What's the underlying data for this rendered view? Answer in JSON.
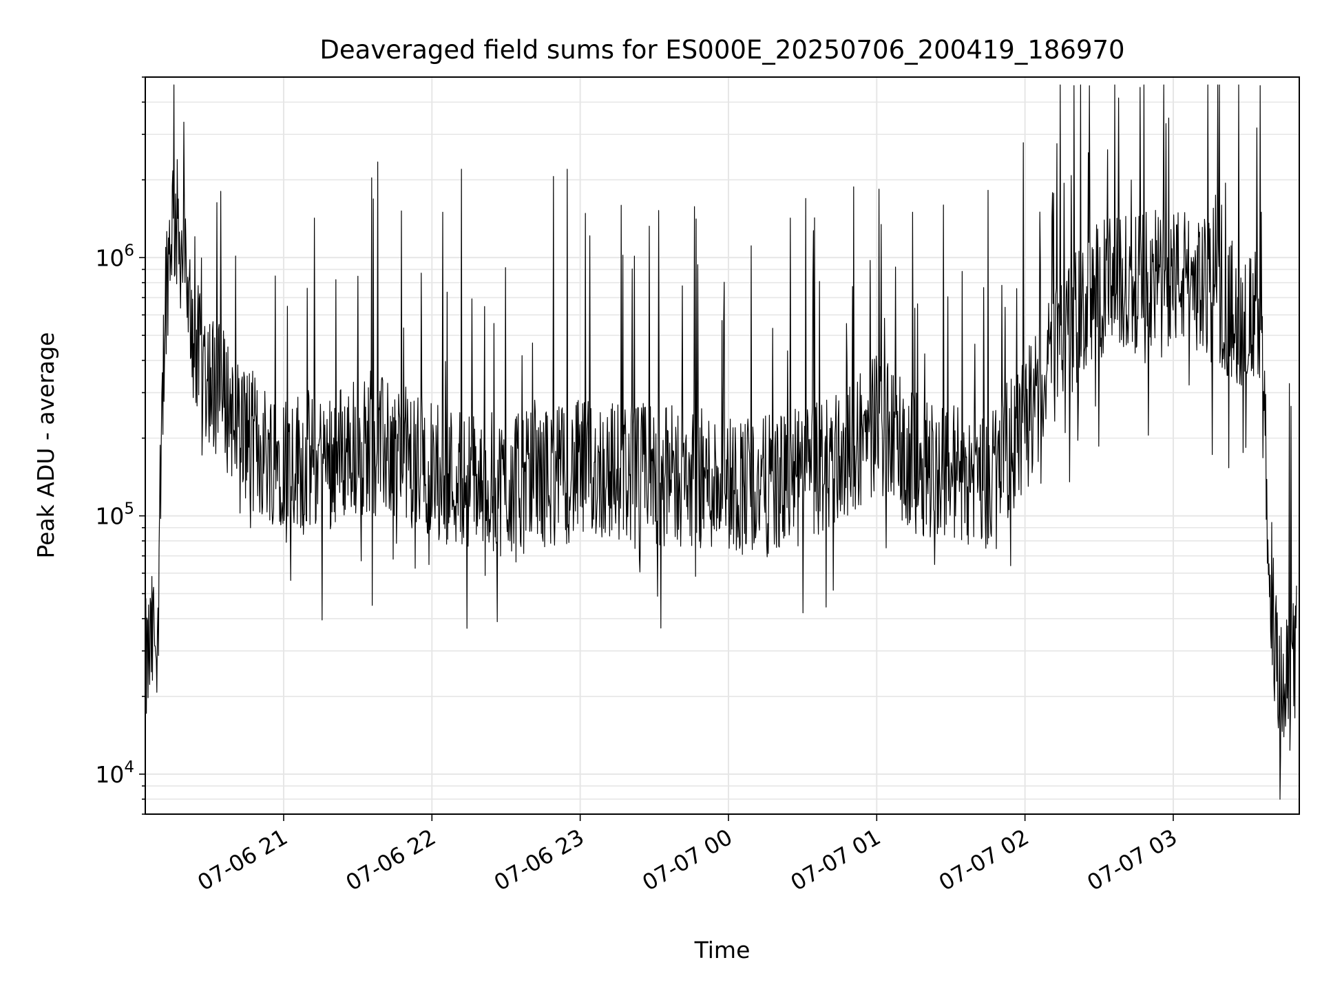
{
  "chart_data": {
    "type": "line",
    "title": "Deaveraged field sums for ES000E_20250706_200419_186970",
    "xlabel": "Time",
    "ylabel": "Peak ADU - average",
    "yscale": "log",
    "ylim": [
      7000,
      5000000
    ],
    "xlim": [
      "2025-07-06 20:04",
      "2025-07-07 03:51"
    ],
    "grid": true,
    "x_ticks": [
      {
        "at": "2025-07-06 21:00",
        "label": "07-06 21"
      },
      {
        "at": "2025-07-06 22:00",
        "label": "07-06 22"
      },
      {
        "at": "2025-07-06 23:00",
        "label": "07-06 23"
      },
      {
        "at": "2025-07-07 00:00",
        "label": "07-07 00"
      },
      {
        "at": "2025-07-07 01:00",
        "label": "07-07 01"
      },
      {
        "at": "2025-07-07 02:00",
        "label": "07-07 02"
      },
      {
        "at": "2025-07-07 03:00",
        "label": "07-07 03"
      }
    ],
    "y_ticks": [
      {
        "value": 10000,
        "base": "10",
        "exp": "4"
      },
      {
        "value": 100000,
        "base": "10",
        "exp": "5"
      },
      {
        "value": 1000000,
        "base": "10",
        "exp": "6"
      }
    ],
    "series": [
      {
        "color": "#000000",
        "x": [
          "2025-07-06 20:04",
          "2025-07-06 20:06",
          "2025-07-06 20:09",
          "2025-07-06 20:12",
          "2025-07-06 20:15",
          "2025-07-06 20:18",
          "2025-07-06 20:20",
          "2025-07-06 20:23",
          "2025-07-06 20:26",
          "2025-07-06 20:30",
          "2025-07-06 20:40",
          "2025-07-06 20:50",
          "2025-07-06 21:00",
          "2025-07-06 21:15",
          "2025-07-06 21:30",
          "2025-07-06 21:45",
          "2025-07-06 22:00",
          "2025-07-06 22:15",
          "2025-07-06 22:30",
          "2025-07-06 22:45",
          "2025-07-06 23:00",
          "2025-07-06 23:15",
          "2025-07-06 23:30",
          "2025-07-06 23:45",
          "2025-07-07 00:00",
          "2025-07-07 00:15",
          "2025-07-07 00:30",
          "2025-07-07 00:45",
          "2025-07-07 01:00",
          "2025-07-07 01:15",
          "2025-07-07 01:30",
          "2025-07-07 01:45",
          "2025-07-07 02:00",
          "2025-07-07 02:15",
          "2025-07-07 02:30",
          "2025-07-07 02:45",
          "2025-07-07 03:00",
          "2025-07-07 03:10",
          "2025-07-07 03:20",
          "2025-07-07 03:35",
          "2025-07-07 03:38",
          "2025-07-07 03:41",
          "2025-07-07 03:44",
          "2025-07-07 03:47",
          "2025-07-07 03:50"
        ],
        "y": [
          25000,
          30000,
          40000,
          700000,
          1500000,
          1200000,
          900000,
          500000,
          400000,
          350000,
          250000,
          180000,
          170000,
          160000,
          190000,
          180000,
          150000,
          140000,
          130000,
          140000,
          150000,
          150000,
          145000,
          140000,
          135000,
          130000,
          140000,
          170000,
          230000,
          160000,
          150000,
          140000,
          220000,
          500000,
          750000,
          800000,
          850000,
          800000,
          650000,
          550000,
          120000,
          30000,
          20000,
          22000,
          30000
        ]
      }
    ]
  }
}
